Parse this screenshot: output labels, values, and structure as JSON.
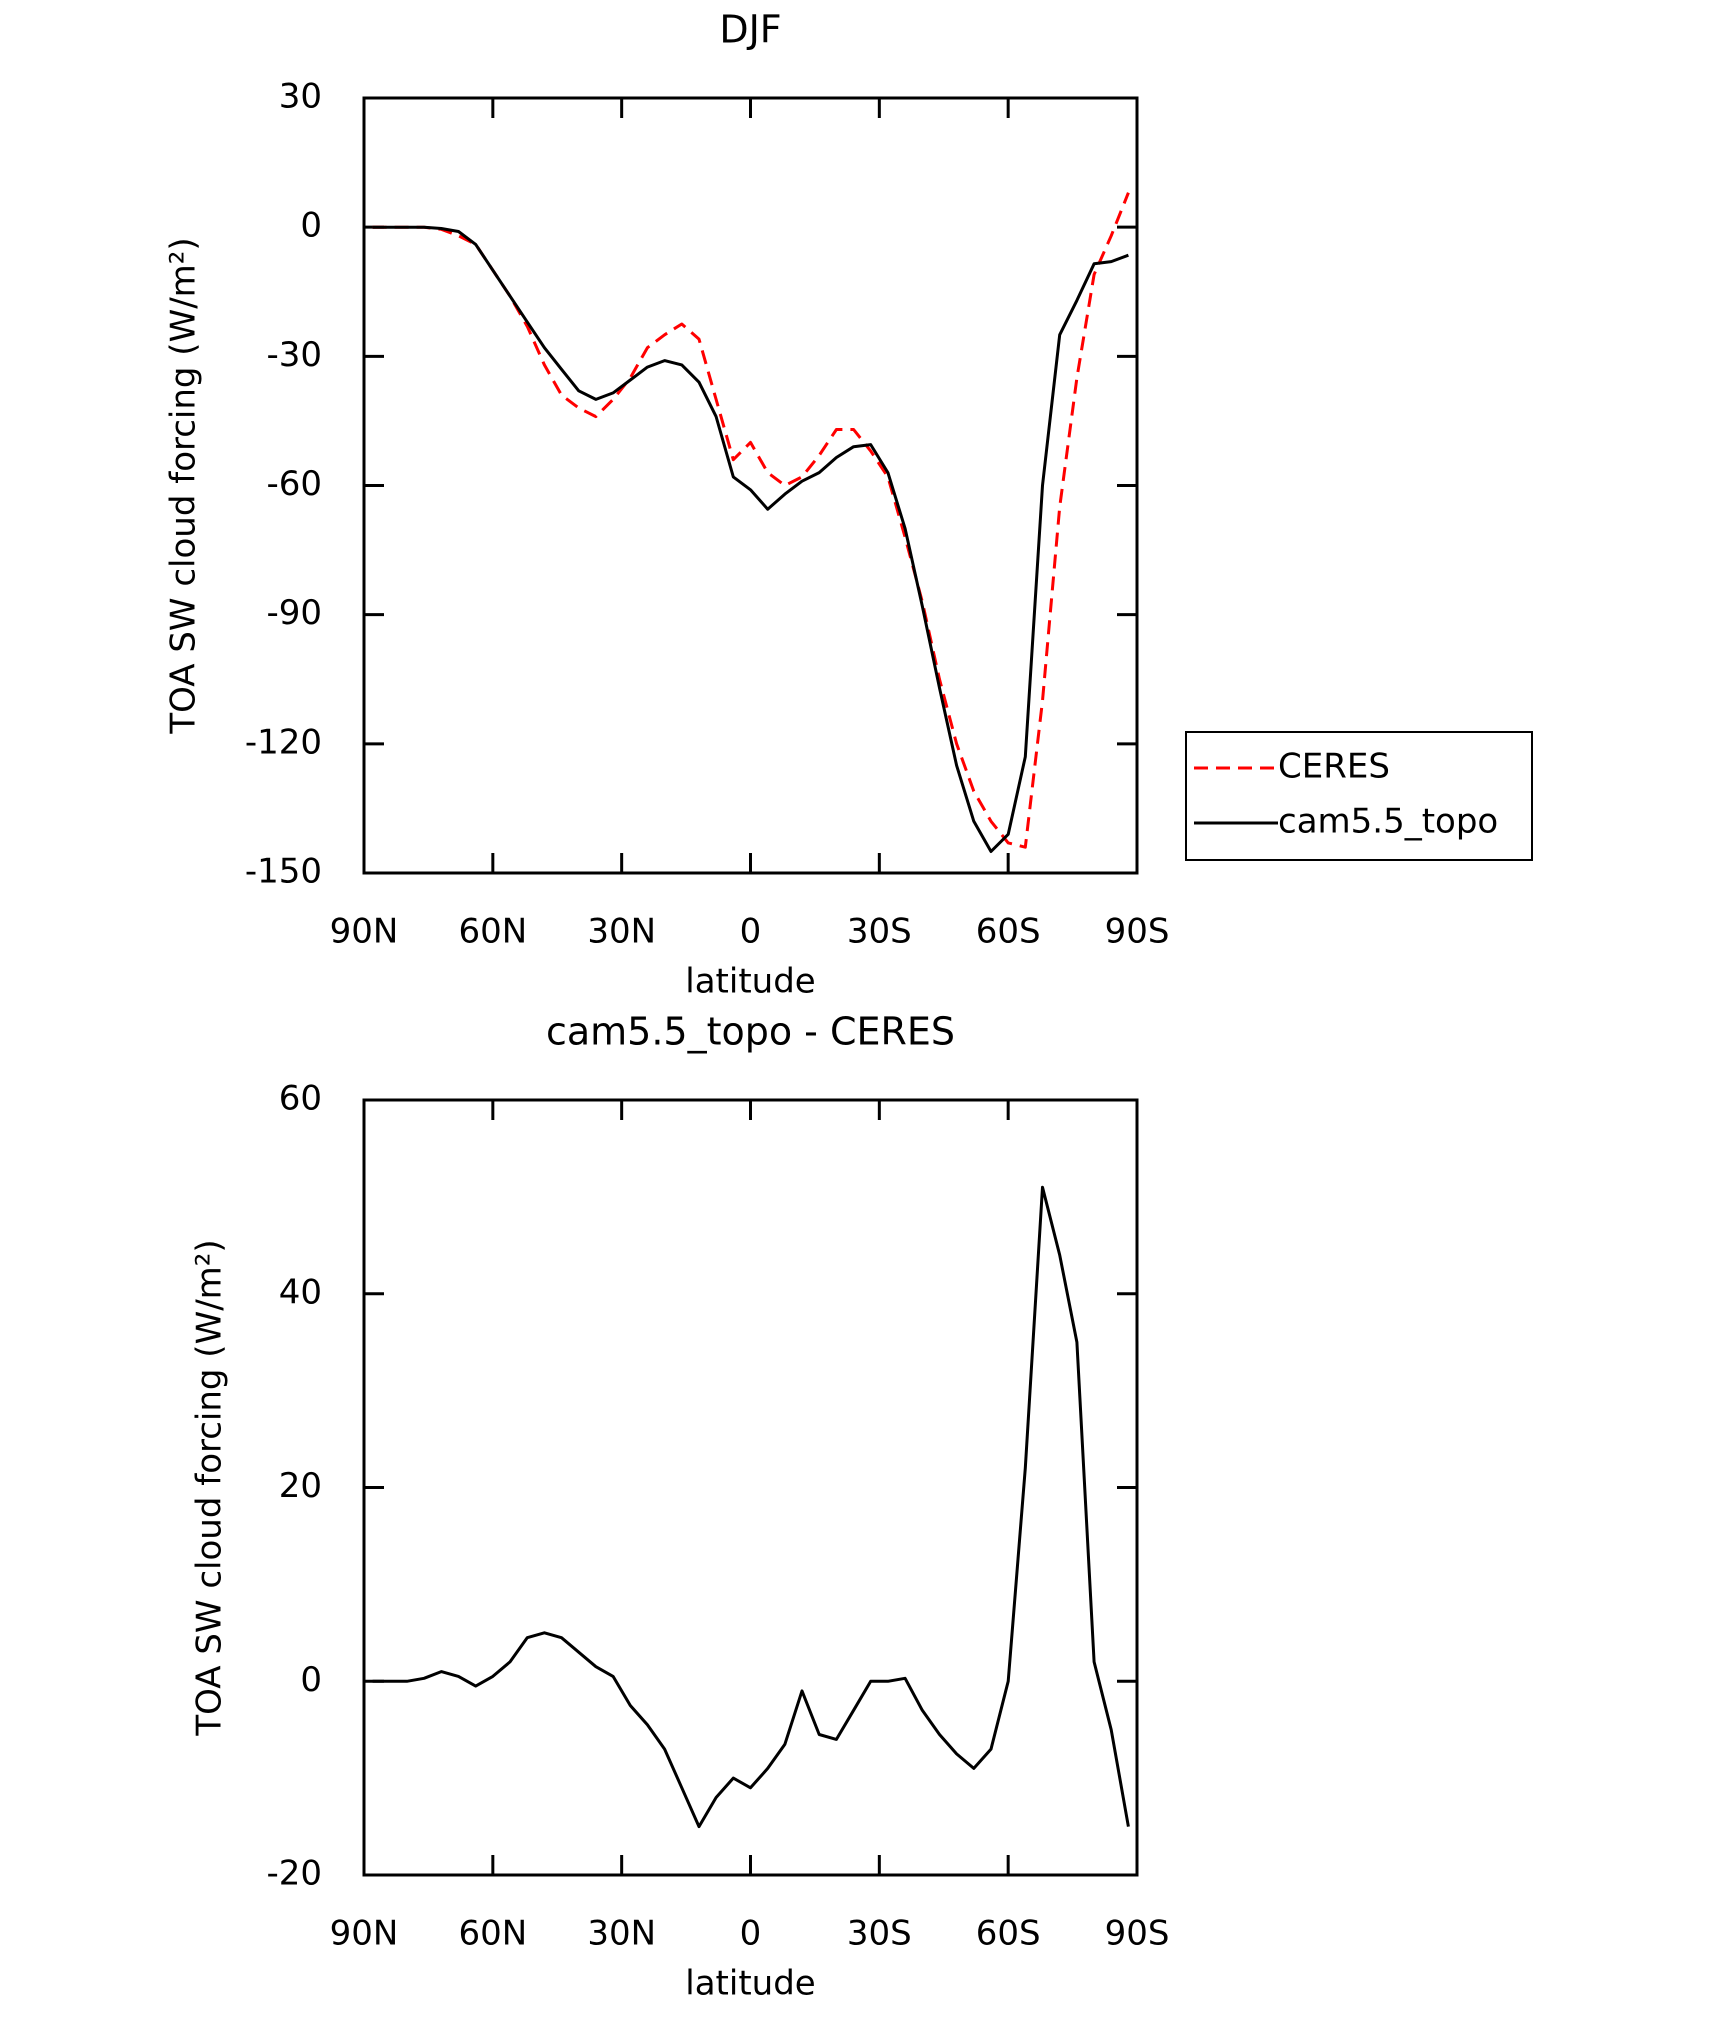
{
  "chart_data": [
    {
      "type": "line",
      "title": "DJF",
      "xlabel": "latitude",
      "ylabel": "TOA SW cloud forcing (W/m²)",
      "x": [
        88,
        84,
        80,
        76,
        72,
        68,
        64,
        60,
        56,
        52,
        48,
        44,
        40,
        36,
        32,
        28,
        24,
        20,
        16,
        12,
        8,
        4,
        0,
        -4,
        -8,
        -12,
        -16,
        -20,
        -24,
        -28,
        -32,
        -36,
        -40,
        -44,
        -48,
        -52,
        -56,
        -60,
        -64,
        -68,
        -72,
        -76,
        -80,
        -84,
        -88
      ],
      "series": [
        {
          "name": "CERES",
          "color": "#ff0000",
          "dash": true,
          "values": [
            0,
            0,
            0,
            0,
            -0.5,
            -2,
            -4,
            -10,
            -16,
            -23,
            -32,
            -39,
            -42,
            -44,
            -40,
            -35,
            -28,
            -25,
            -22.5,
            -26,
            -40,
            -54,
            -50,
            -57,
            -60,
            -58,
            -53,
            -47,
            -47,
            -52,
            -58,
            -72,
            -87,
            -105,
            -120,
            -131,
            -138,
            -143,
            -144,
            -110,
            -65,
            -35,
            -11,
            -2,
            8
          ]
        },
        {
          "name": "cam5.5_topo",
          "color": "#000000",
          "dash": false,
          "values": [
            0,
            0,
            0,
            0,
            -0.3,
            -1,
            -4,
            -10,
            -16,
            -22,
            -28,
            -33,
            -38,
            -40,
            -38.5,
            -35.5,
            -32.5,
            -31,
            -32,
            -36,
            -44,
            -58,
            -61,
            -65.5,
            -62,
            -59,
            -57,
            -53.5,
            -51,
            -50.5,
            -57,
            -70,
            -88,
            -107,
            -125,
            -138,
            -145,
            -141,
            -123,
            -60,
            -25,
            -17,
            -8.5,
            -8,
            -6.5
          ]
        }
      ],
      "xlim": [
        90,
        -90
      ],
      "xticks": [
        {
          "value": 90,
          "label": "90N"
        },
        {
          "value": 60,
          "label": "60N"
        },
        {
          "value": 30,
          "label": "30N"
        },
        0,
        {
          "value": -30,
          "label": "30S"
        },
        {
          "value": -60,
          "label": "60S"
        },
        {
          "value": -90,
          "label": "90S"
        }
      ],
      "ylim": [
        -150,
        30
      ],
      "yticks": [
        -150,
        -120,
        -90,
        -60,
        -30,
        0,
        30
      ],
      "legend": "right"
    },
    {
      "type": "line",
      "title": "cam5.5_topo - CERES",
      "xlabel": "latitude",
      "ylabel": "TOA SW cloud forcing (W/m²)",
      "x": [
        88,
        84,
        80,
        76,
        72,
        68,
        64,
        60,
        56,
        52,
        48,
        44,
        40,
        36,
        32,
        28,
        24,
        20,
        16,
        12,
        8,
        4,
        0,
        -4,
        -8,
        -12,
        -16,
        -20,
        -24,
        -28,
        -32,
        -36,
        -40,
        -44,
        -48,
        -52,
        -56,
        -60,
        -64,
        -68,
        -72,
        -76,
        -80,
        -84,
        -88
      ],
      "values": [
        0,
        0,
        0,
        0.3,
        1,
        0.5,
        -0.5,
        0.5,
        2,
        4.5,
        5,
        4.5,
        3,
        1.5,
        0.5,
        -2.5,
        -4.5,
        -7,
        -11,
        -15,
        -12,
        -10,
        -11,
        -9,
        -6.5,
        -1,
        -5.5,
        -6,
        -3,
        0,
        0,
        0.3,
        -3,
        -5.5,
        -7.5,
        -9,
        -7,
        0,
        22,
        51,
        44,
        35,
        2,
        -5,
        -15
      ],
      "color": "#000000",
      "xlim": [
        90,
        -90
      ],
      "xticks": [
        {
          "value": 90,
          "label": "90N"
        },
        {
          "value": 60,
          "label": "60N"
        },
        {
          "value": 30,
          "label": "30N"
        },
        0,
        {
          "value": -30,
          "label": "30S"
        },
        {
          "value": -60,
          "label": "60S"
        },
        {
          "value": -90,
          "label": "90S"
        }
      ],
      "ylim": [
        -20,
        60
      ],
      "yticks": [
        -20,
        0,
        20,
        40,
        60
      ]
    }
  ]
}
